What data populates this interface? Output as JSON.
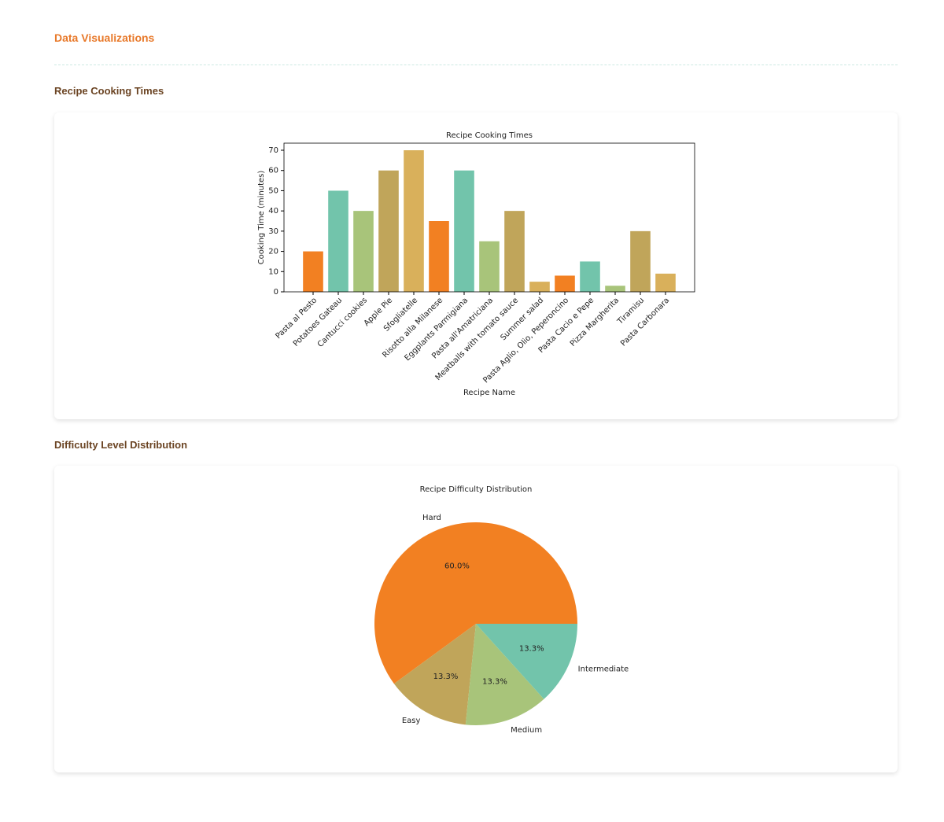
{
  "page": {
    "title": "Data Visualizations",
    "sections": [
      "Recipe Cooking Times",
      "Difficulty Level Distribution"
    ]
  },
  "chart_data": [
    {
      "type": "bar",
      "title": "Recipe Cooking Times",
      "x_label": "Recipe Name",
      "y_label": "Cooking Time (minutes)",
      "categories": [
        "Pasta al Pesto",
        "Potatoes Gateau",
        "Cantucci cookies",
        "Apple Pie",
        "Sfogliatelle",
        "Risotto alla Milanese",
        "Eggplants Parmigiana",
        "Pasta all'Amatriciana",
        "Meatballs with tomato sauce",
        "Summer salad",
        "Pasta Aglio, Olio, Peperoncino",
        "Pasta Cacio e Pepe",
        "Pizza Margherita",
        "Tiramisu",
        "Pasta Carbonara"
      ],
      "values": [
        20,
        50,
        40,
        60,
        70,
        35,
        60,
        25,
        40,
        5,
        8,
        15,
        3,
        30,
        9
      ],
      "colors": [
        "#f28022",
        "#72c4ab",
        "#a8c47a",
        "#c0a55a",
        "#d9b05b"
      ],
      "ylim": [
        0,
        73.5
      ],
      "yticks": [
        0,
        10,
        20,
        30,
        40,
        50,
        60,
        70
      ]
    },
    {
      "type": "pie",
      "title": "Recipe Difficulty Distribution",
      "categories": [
        "Hard",
        "Easy",
        "Medium",
        "Intermediate"
      ],
      "values": [
        60,
        13.3,
        13.3,
        13.3
      ],
      "value_labels": [
        "60.0%",
        "13.3%",
        "13.3%",
        "13.3%"
      ],
      "colors": [
        "#f28022",
        "#c0a55a",
        "#a8c47a",
        "#72c4ab"
      ]
    }
  ]
}
